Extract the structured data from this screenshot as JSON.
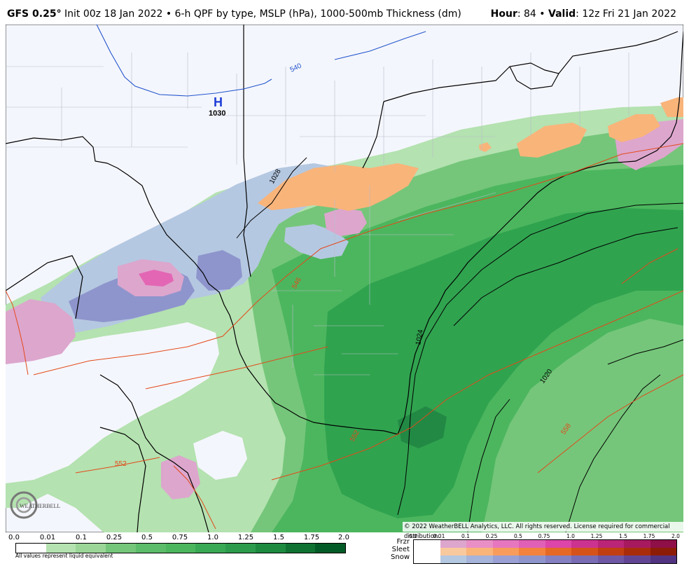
{
  "header": {
    "model": "GFS 0.25",
    "degree": "°",
    "init": " Init 00z 18 Jan 2022 • 6-h QPF by type, MSLP (hPa), 1000-500mb Thickness (dm)",
    "hour_label": "Hour",
    "hour_value": ": 84 •",
    "valid_label": "Valid",
    "valid_value": ": 12z Fri 21 Jan 2022"
  },
  "map": {
    "high_symbol": "H",
    "high_pressure": "1030",
    "isobar_labels": [
      "1028",
      "1024",
      "1020"
    ],
    "thickness_labels": [
      "540",
      "546",
      "552",
      "552",
      "558"
    ],
    "logo_text": "WEATHERBELL",
    "copyright": "© 2022 WeatherBELL Analytics, LLC. All rights reserved. License required for commercial distribution.",
    "colors": {
      "land": "#f4f6fd",
      "rain_light": "#b4e2b0",
      "rain_med": "#75c67a",
      "rain_mod": "#4cb65e",
      "rain_heavy": "#30a34f",
      "rain_vheavy": "#228944",
      "snow_light": "#b5c8e1",
      "snow_med": "#8e95cc",
      "frzr_light": "#dda6cd",
      "frzr_med": "#e366b4",
      "sleet": "#f9b47a",
      "thickness_red": "#e34a1a",
      "thickness_blue": "#2255cc"
    }
  },
  "qpf_legend": {
    "ticks": [
      "0.0",
      "0.01",
      "0.1",
      "0.25",
      "0.5",
      "0.75",
      "1.0",
      "1.25",
      "1.5",
      "1.75",
      "2.0"
    ],
    "colors": [
      "#ffffff",
      "#b4e2b0",
      "#9bd698",
      "#75c67a",
      "#5cbc6a",
      "#4cb65e",
      "#3aa955",
      "#2c9b4c",
      "#1d8a40",
      "#0f7233",
      "#035a26"
    ],
    "note": "All values represent liquid equivalent"
  },
  "ptype_legend": {
    "ticks": [
      "0.0",
      "0.01",
      "0.1",
      "0.25",
      "0.5",
      "0.75",
      "1.0",
      "1.25",
      "1.5",
      "1.75",
      "2.0"
    ],
    "rows": [
      {
        "label": "Frzr",
        "colors": [
          "#ffffff",
          "#dda6cd",
          "#e98fc6",
          "#e677bf",
          "#e060b6",
          "#dd45a8",
          "#cc3390",
          "#bb2577",
          "#a81a60",
          "#8f0f48"
        ]
      },
      {
        "label": "Sleet",
        "colors": [
          "#ffffff",
          "#f9c99e",
          "#f9b47a",
          "#f79c5c",
          "#f2823e",
          "#e56826",
          "#d5521a",
          "#c03e12",
          "#a82c0c",
          "#8d1c06"
        ]
      },
      {
        "label": "Snow",
        "colors": [
          "#ffffff",
          "#b5c8e1",
          "#a6b3da",
          "#9aa0d4",
          "#8e95cc",
          "#8580c1",
          "#7a6cb4",
          "#6e58a5",
          "#614594",
          "#523381"
        ]
      }
    ]
  }
}
